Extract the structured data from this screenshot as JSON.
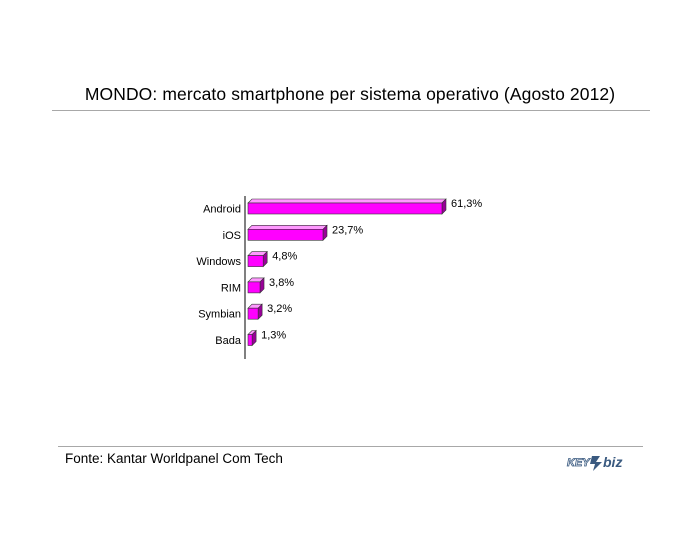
{
  "header": {
    "title": "MONDO: mercato smartphone per sistema operativo (Agosto 2012)"
  },
  "footer": {
    "source": "Fonte: Kantar Worldpanel Com Tech",
    "logo_text": "KEY4biz"
  },
  "colors": {
    "bar_front": "#ff00ff",
    "bar_top": "#ff99ff",
    "bar_side": "#990099",
    "outline": "#333333"
  },
  "chart_data": {
    "type": "bar",
    "orientation": "horizontal",
    "bar_style": "3d",
    "title": "MONDO: mercato smartphone per sistema operativo (Agosto 2012)",
    "categories": [
      "Android",
      "iOS",
      "Windows",
      "RIM",
      "Symbian",
      "Bada"
    ],
    "values": [
      61.3,
      23.7,
      4.8,
      3.8,
      3.2,
      1.3
    ],
    "value_labels": [
      "61,3%",
      "23,7%",
      "4,8%",
      "3,8%",
      "3,2%",
      "1,3%"
    ],
    "xlim": [
      0,
      61.3
    ],
    "grid": false,
    "legend": "none"
  }
}
